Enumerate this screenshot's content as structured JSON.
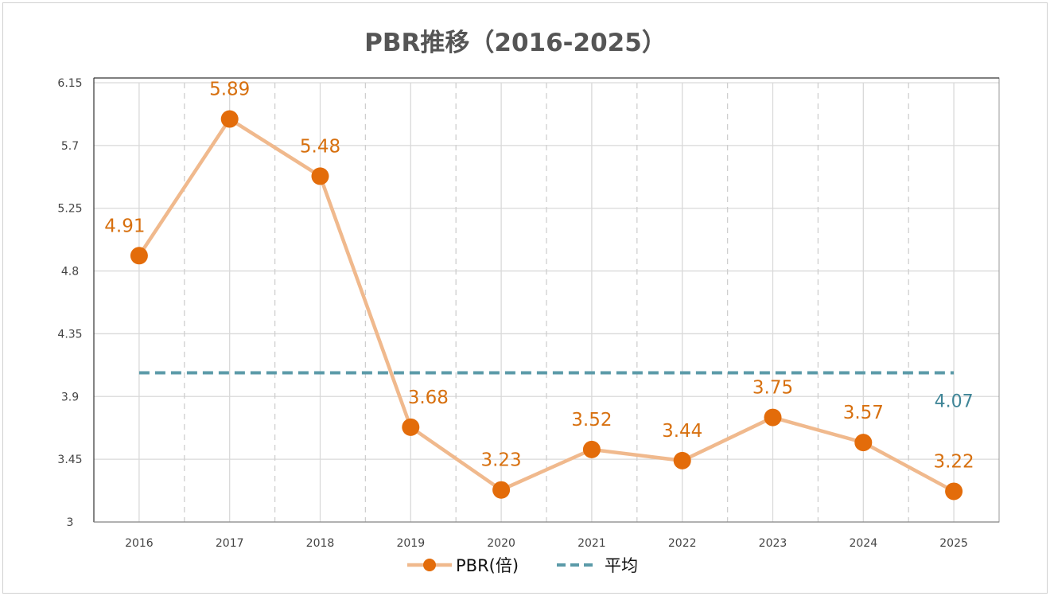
{
  "chart_data": {
    "type": "line",
    "title": "PBR推移（2016-2025）",
    "categories": [
      "2016",
      "2017",
      "2018",
      "2019",
      "2020",
      "2021",
      "2022",
      "2023",
      "2024",
      "2025"
    ],
    "series": [
      {
        "name": "PBR(倍)",
        "values": [
          4.91,
          5.89,
          5.48,
          3.68,
          3.23,
          3.52,
          3.44,
          3.75,
          3.57,
          3.22
        ],
        "color": "#e36c0a",
        "line_color": "#f0b98d"
      },
      {
        "name": "平均",
        "values": [
          4.07,
          4.07,
          4.07,
          4.07,
          4.07,
          4.07,
          4.07,
          4.07,
          4.07,
          4.07
        ],
        "color": "#5b9aa8",
        "style": "dashed",
        "label": "4.07"
      }
    ],
    "yticks": [
      "3",
      "3.45",
      "3.9",
      "4.35",
      "4.8",
      "5.25",
      "5.7",
      "6.15"
    ],
    "ylim": [
      3,
      6.15
    ],
    "grid": true,
    "legend": "bottom"
  }
}
